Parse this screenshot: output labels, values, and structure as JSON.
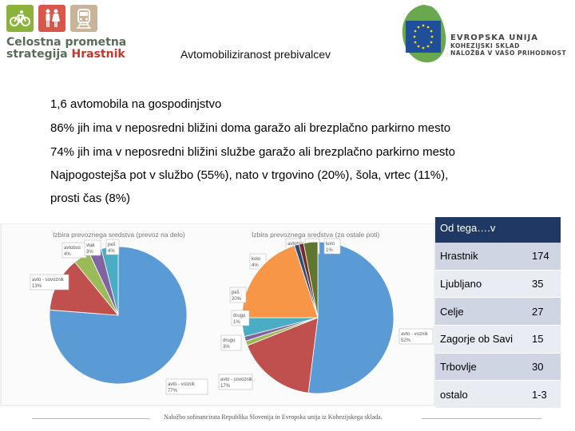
{
  "header": {
    "title": "Avtomobiliziranost prebivalcev",
    "logo_left": {
      "line1": "Celostna prometna",
      "line2a": "strategija",
      "line2b": "Hrastnik"
    },
    "logo_right": {
      "line1": "EVROPSKA UNIJA",
      "line2": "KOHEZIJSKI SKLAD",
      "line3": "NALOŽBA V VAŠO PRIHODNOST"
    }
  },
  "bullets": [
    "1,6 avtomobila na gospodinjstvo",
    "86% jih ima v neposredni bližini doma garažo ali brezplačno parkirno mesto",
    "74% jih ima v neposredni bližini službe garažo ali brezplačno parkirno mesto",
    "Najpogostejša pot v službo (55%), nato v trgovino (20%), šola, vrtec (11%),",
    "prosti čas (8%)"
  ],
  "chart_data": [
    {
      "type": "pie",
      "title": "Izbira prevoznega sredstva (prevoz na delo)",
      "slices": [
        {
          "label": "avto - voznik",
          "value": 77,
          "color": "#5b9bd5"
        },
        {
          "label": "avto - sovoznik",
          "value": 13,
          "color": "#c0504d"
        },
        {
          "label": "avtobus",
          "value": 4,
          "color": "#9bbb59"
        },
        {
          "label": "vlak",
          "value": 3,
          "color": "#8064a2"
        },
        {
          "label": "peš",
          "value": 4,
          "color": "#4bacc6"
        }
      ]
    },
    {
      "type": "pie",
      "title": "Izbira prevoznega sredstva (za ostale poti)",
      "slices": [
        {
          "label": "avto - voznik",
          "value": 52,
          "color": "#5b9bd5"
        },
        {
          "label": "avto - sovoznik",
          "value": 17,
          "color": "#c0504d"
        },
        {
          "label": "avtobus",
          "value": 1,
          "color": "#9bbb59"
        },
        {
          "label": "vlak",
          "value": 1,
          "color": "#8064a2"
        },
        {
          "label": "kolo",
          "value": 4,
          "color": "#4bacc6"
        },
        {
          "label": "peš",
          "value": 20,
          "color": "#f79646"
        },
        {
          "label": "kolo",
          "value": 1,
          "color": "#2c4d75"
        },
        {
          "label": "drugo",
          "value": 1,
          "color": "#772c2a"
        },
        {
          "label": "drugo",
          "value": 3,
          "color": "#5f7530"
        }
      ]
    }
  ],
  "table": {
    "header": "Od tega….v",
    "rows": [
      {
        "name": "Hrastnik",
        "value": "174"
      },
      {
        "name": "Ljubljano",
        "value": "35"
      },
      {
        "name": "Celje",
        "value": "27"
      },
      {
        "name": "Zagorje ob Savi",
        "value": "15"
      },
      {
        "name": "Trbovlje",
        "value": "30"
      },
      {
        "name": "ostalo",
        "value": "1-3"
      }
    ]
  },
  "footer": {
    "text": "Naložbo sofinancirata Republika Slovenija in Evropska unija iz Kohezijskega sklada."
  }
}
